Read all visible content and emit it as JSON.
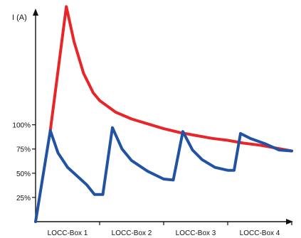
{
  "chart_data": {
    "type": "line",
    "ylabel": "I (A)",
    "xlabel": "",
    "x_categories": [
      "LOCC-Box 1",
      "LOCC-Box 2",
      "LOCC-Box 3",
      "LOCC-Box 4"
    ],
    "y_ticks": [
      {
        "value": 25,
        "label": "25%"
      },
      {
        "value": 50,
        "label": "50%"
      },
      {
        "value": 75,
        "label": "75%"
      },
      {
        "value": 100,
        "label": "100%"
      }
    ],
    "ylim": [
      0,
      220
    ],
    "xlim": [
      0,
      4
    ],
    "series": [
      {
        "color": "#e8262a",
        "points": [
          [
            0.23,
            94
          ],
          [
            0.48,
            222
          ],
          [
            0.6,
            186
          ],
          [
            0.75,
            153
          ],
          [
            0.9,
            133
          ],
          [
            1.0,
            125
          ],
          [
            1.25,
            113
          ],
          [
            1.5,
            106
          ],
          [
            1.75,
            101
          ],
          [
            2.0,
            96
          ],
          [
            2.25,
            92
          ],
          [
            2.5,
            89
          ],
          [
            2.75,
            86
          ],
          [
            3.0,
            84
          ],
          [
            3.25,
            81
          ],
          [
            3.5,
            79
          ],
          [
            3.75,
            76
          ],
          [
            4.0,
            73
          ]
        ]
      },
      {
        "color": "#2253a3",
        "points": [
          [
            0.0,
            0
          ],
          [
            0.23,
            94
          ],
          [
            0.35,
            71
          ],
          [
            0.5,
            56
          ],
          [
            0.65,
            47
          ],
          [
            0.8,
            38
          ],
          [
            0.92,
            28
          ],
          [
            1.05,
            28
          ],
          [
            1.2,
            97
          ],
          [
            1.35,
            75
          ],
          [
            1.5,
            63
          ],
          [
            1.75,
            52
          ],
          [
            2.0,
            44
          ],
          [
            2.15,
            43
          ],
          [
            2.3,
            93
          ],
          [
            2.45,
            74
          ],
          [
            2.6,
            64
          ],
          [
            2.8,
            56
          ],
          [
            3.0,
            53
          ],
          [
            3.1,
            53
          ],
          [
            3.2,
            91
          ],
          [
            3.35,
            86
          ],
          [
            3.6,
            80
          ],
          [
            3.8,
            74
          ],
          [
            4.0,
            73
          ]
        ]
      }
    ]
  }
}
